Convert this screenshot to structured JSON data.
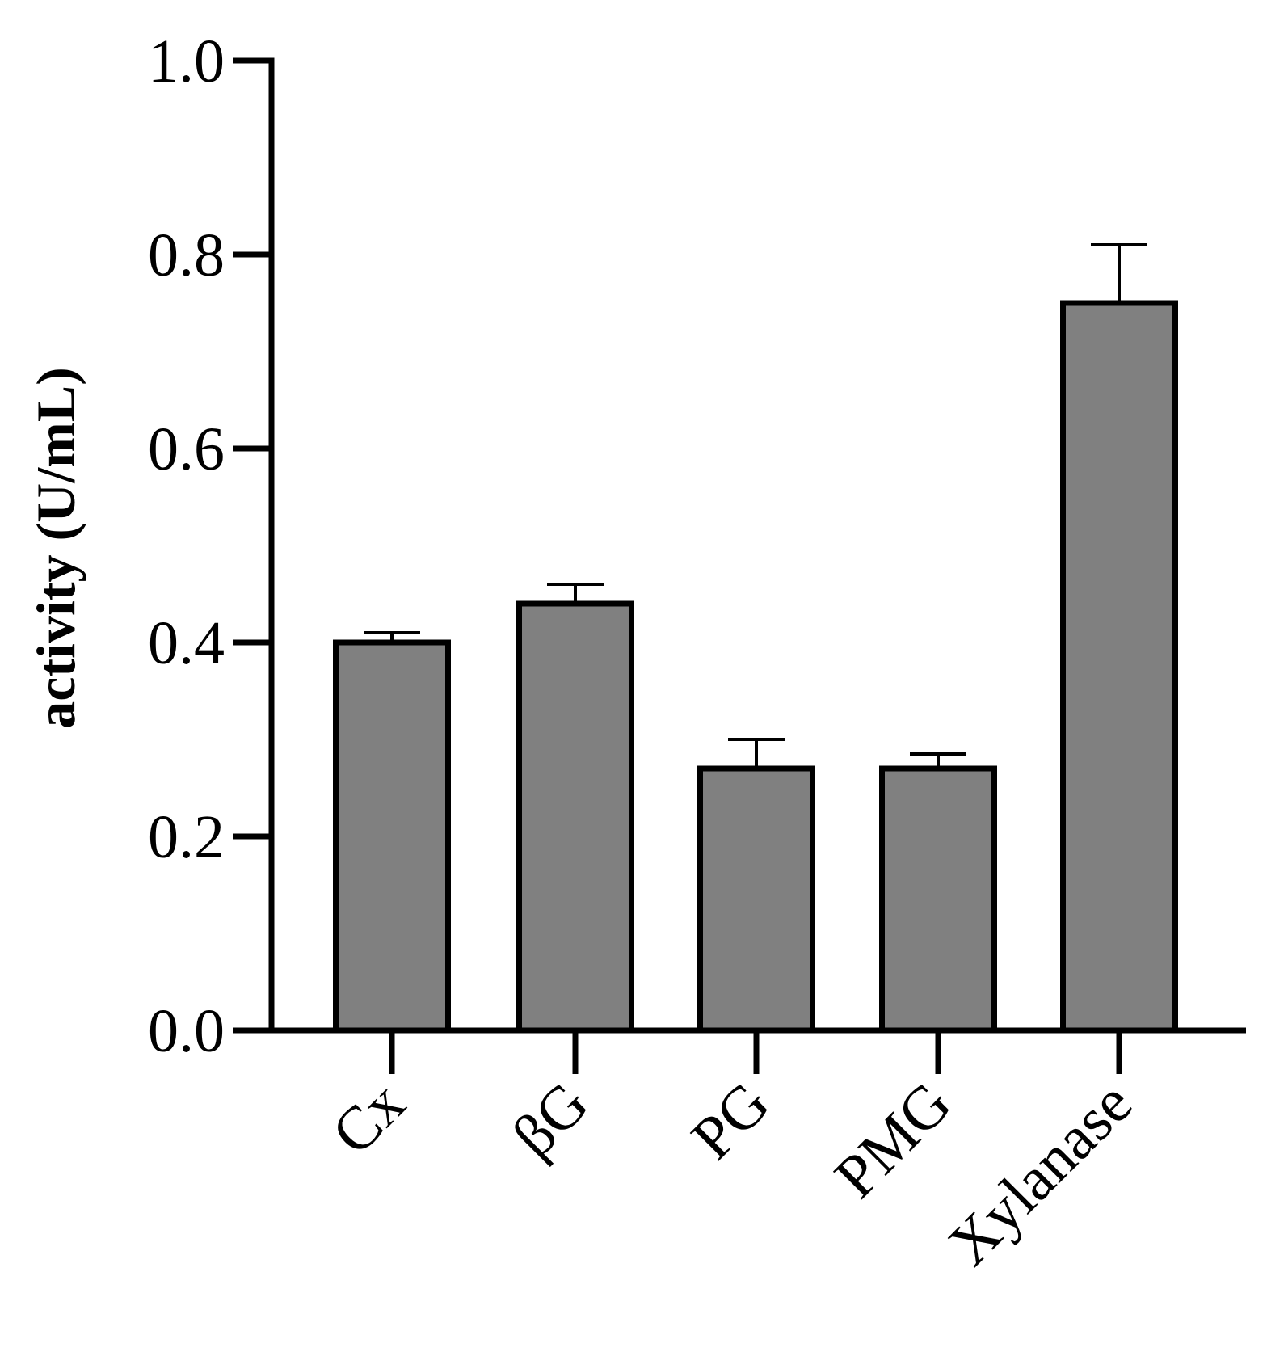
{
  "chart_data": {
    "type": "bar",
    "y_label": "activity (U/mL)",
    "categories": [
      "Cx",
      "βG",
      "PG",
      "PMG",
      "Xylanase"
    ],
    "values": [
      0.4,
      0.44,
      0.27,
      0.27,
      0.75
    ],
    "errors": [
      0.01,
      0.02,
      0.03,
      0.015,
      0.06
    ],
    "color": "#808080",
    "ylim": [
      0,
      1.0
    ],
    "yticks": [
      {
        "value": 0,
        "label": "0.0"
      },
      0.2,
      0.4,
      0.6,
      0.8,
      {
        "value": 1.0,
        "label": "1.0"
      }
    ]
  }
}
